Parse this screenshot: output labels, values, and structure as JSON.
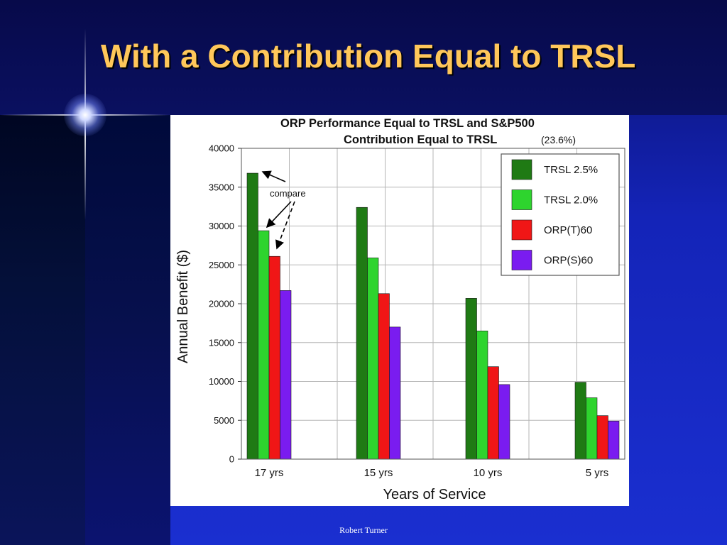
{
  "slide": {
    "title": "With a Contribution Equal to TRSL",
    "footer": "Robert Turner"
  },
  "colors": {
    "title": "#ffc75a",
    "background": "#1424b8",
    "trsl25": "#1f7a14",
    "trsl20": "#2ed42e",
    "orpt60": "#f01616",
    "orps60": "#7a1cf0"
  },
  "chart_data": {
    "type": "bar",
    "title_line1": "ORP Performance Equal to TRSL and S&P500",
    "title_line2": "Contribution Equal to TRSL",
    "title_note": "(23.6%)",
    "xlabel": "Years of Service",
    "ylabel": "Annual Benefit ($)",
    "categories": [
      "17 yrs",
      "15 yrs",
      "10 yrs",
      "5 yrs"
    ],
    "ylim": [
      0,
      40000
    ],
    "yticks": [
      0,
      5000,
      10000,
      15000,
      20000,
      25000,
      30000,
      35000,
      40000
    ],
    "grid": true,
    "legend_position": "top-right",
    "annotation": "compare",
    "series": [
      {
        "name": "TRSL 2.5%",
        "color": "#1f7a14",
        "values": [
          36800,
          32400,
          20700,
          9900
        ]
      },
      {
        "name": "TRSL 2.0%",
        "color": "#2ed42e",
        "values": [
          29400,
          25900,
          16500,
          7900
        ]
      },
      {
        "name": "ORP(T)60",
        "color": "#f01616",
        "values": [
          26100,
          21300,
          11900,
          5600
        ]
      },
      {
        "name": "ORP(S)60",
        "color": "#7a1cf0",
        "values": [
          21700,
          17000,
          9600,
          4900
        ]
      }
    ]
  }
}
